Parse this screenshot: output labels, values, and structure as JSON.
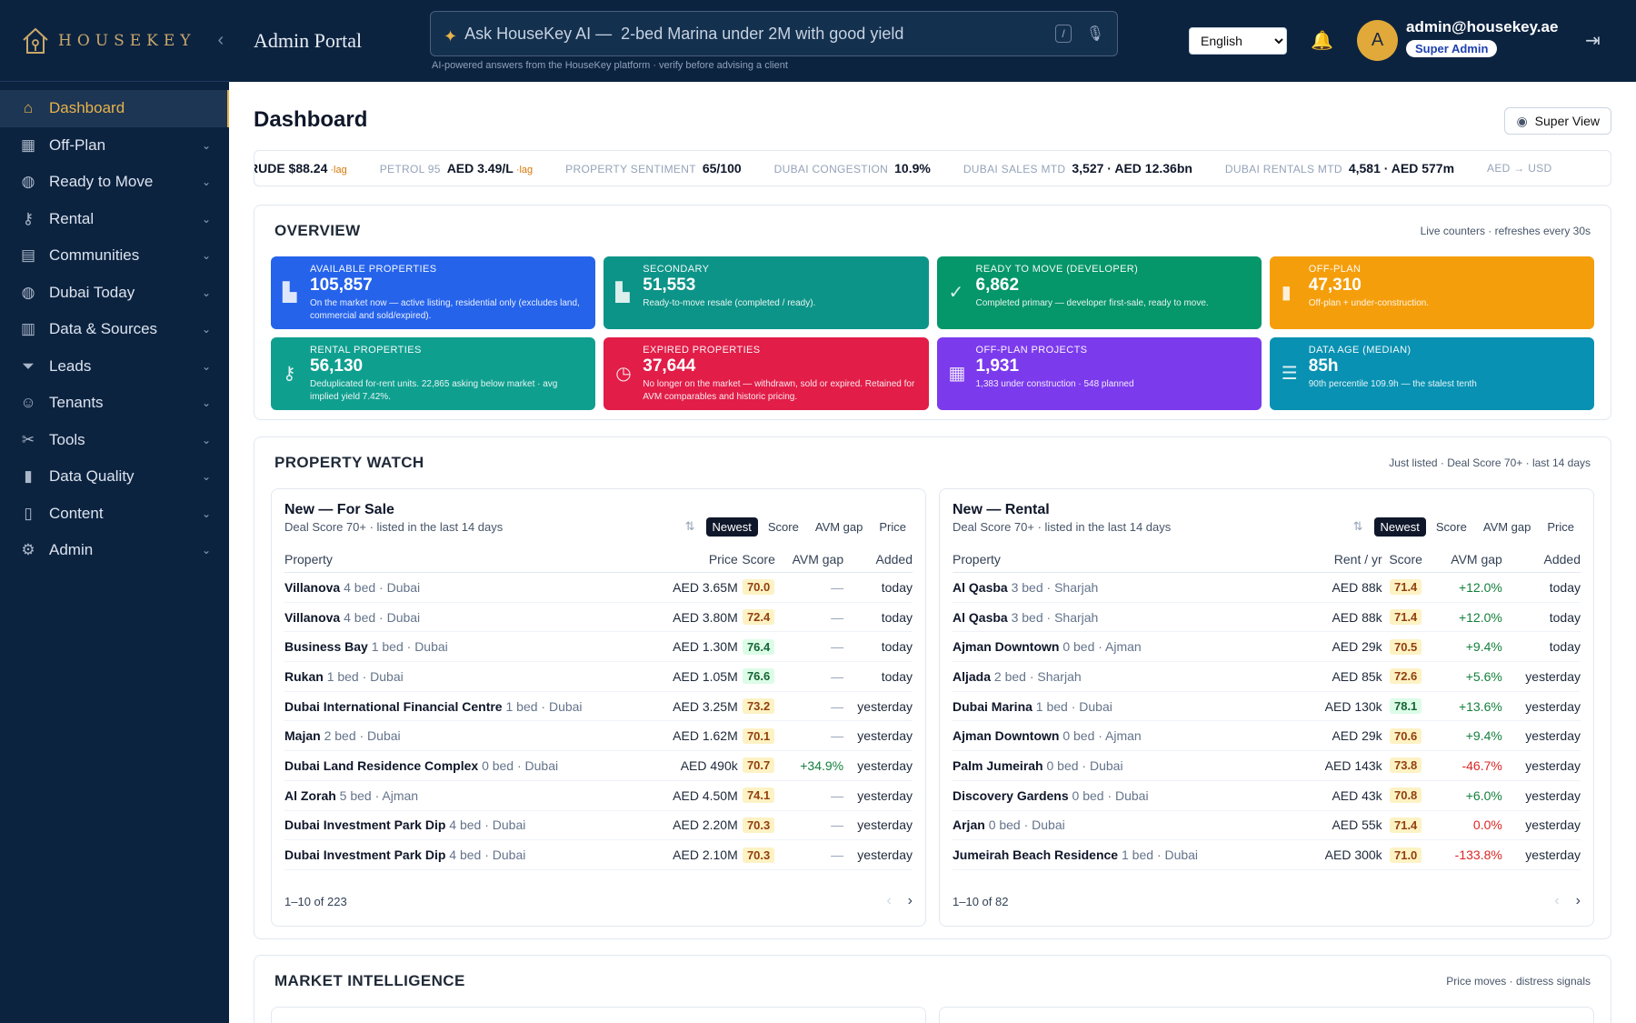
{
  "brand": {
    "name": "HOUSEKEY",
    "portal": "Admin Portal"
  },
  "search": {
    "prefix": "Ask HouseKey AI —",
    "placeholder": "Ask HouseKey AI —  2-bed Marina under 2M with good yield",
    "shortcut": "/",
    "note": "AI-powered answers from the HouseKey platform · verify before advising a client"
  },
  "language": {
    "selected": "English"
  },
  "user": {
    "initial": "A",
    "email": "admin@housekey.ae",
    "role": "Super Admin"
  },
  "sidebar": {
    "items": [
      {
        "label": "Dashboard",
        "icon": "home-icon",
        "glyph": "⌂"
      },
      {
        "label": "Off-Plan",
        "icon": "building-icon",
        "glyph": "▦"
      },
      {
        "label": "Ready to Move",
        "icon": "globe-icon",
        "glyph": "◍"
      },
      {
        "label": "Rental",
        "icon": "key-icon",
        "glyph": "⚷"
      },
      {
        "label": "Communities",
        "icon": "map-icon",
        "glyph": "▤"
      },
      {
        "label": "Dubai Today",
        "icon": "globe-icon",
        "glyph": "◍"
      },
      {
        "label": "Data & Sources",
        "icon": "database-icon",
        "glyph": "▥"
      },
      {
        "label": "Leads",
        "icon": "funnel-icon",
        "glyph": "⏷"
      },
      {
        "label": "Tenants",
        "icon": "users-icon",
        "glyph": "☺"
      },
      {
        "label": "Tools",
        "icon": "tools-icon",
        "glyph": "✂"
      },
      {
        "label": "Data Quality",
        "icon": "bar-chart-icon",
        "glyph": "▮"
      },
      {
        "label": "Content",
        "icon": "document-icon",
        "glyph": "▯"
      },
      {
        "label": "Admin",
        "icon": "gear-icon",
        "glyph": "⚙"
      }
    ]
  },
  "page": {
    "title": "Dashboard",
    "super_view": "Super View"
  },
  "ticker": [
    {
      "k": "",
      "v": "RUDE $88.24",
      "lag": "·lag"
    },
    {
      "k": "PETROL 95",
      "v": "AED 3.49/L",
      "lag": "·lag"
    },
    {
      "k": "PROPERTY SENTIMENT",
      "v": "65/100",
      "lag": ""
    },
    {
      "k": "DUBAI CONGESTION",
      "v": "10.9%",
      "lag": ""
    },
    {
      "k": "DUBAI SALES MTD",
      "v": "3,527 · AED 12.36bn",
      "lag": ""
    },
    {
      "k": "DUBAI RENTALS MTD",
      "v": "4,581 · AED 577m",
      "lag": ""
    },
    {
      "k": "AED → USD",
      "v": "",
      "lag": ""
    }
  ],
  "overview": {
    "title": "OVERVIEW",
    "note": "Live counters · refreshes every 30s",
    "cards": [
      {
        "label": "AVAILABLE PROPERTIES",
        "value": "105,857",
        "desc": "On the market now — active listing, residential only (excludes land, commercial and sold/expired).",
        "color": "#2563eb",
        "glyph": "▙"
      },
      {
        "label": "SECONDARY",
        "value": "51,553",
        "desc": "Ready-to-move resale (completed / ready).",
        "color": "#0d9488",
        "glyph": "▙"
      },
      {
        "label": "READY TO MOVE (DEVELOPER)",
        "value": "6,862",
        "desc": "Completed primary — developer first-sale, ready to move.",
        "color": "#059669",
        "glyph": "✓"
      },
      {
        "label": "OFF-PLAN",
        "value": "47,310",
        "desc": "Off-plan + under-construction.",
        "color": "#f59e0b",
        "glyph": "▮"
      },
      {
        "label": "RENTAL PROPERTIES",
        "value": "56,130",
        "desc": "Deduplicated for-rent units. 22,865 asking below market · avg implied yield 7.42%.",
        "color": "#0f9f8f",
        "glyph": "⚷"
      },
      {
        "label": "EXPIRED PROPERTIES",
        "value": "37,644",
        "desc": "No longer on the market — withdrawn, sold or expired. Retained for AVM comparables and historic pricing.",
        "color": "#e11d48",
        "glyph": "◷"
      },
      {
        "label": "OFF-PLAN PROJECTS",
        "value": "1,931",
        "desc": "1,383 under construction · 548 planned",
        "color": "#7c3aed",
        "glyph": "▦"
      },
      {
        "label": "DATA AGE (MEDIAN)",
        "value": "85h",
        "desc": "90th percentile 109.9h — the stalest tenth",
        "color": "#0891b2",
        "glyph": "☰"
      }
    ]
  },
  "property_watch": {
    "title": "PROPERTY WATCH",
    "note": "Just listed · Deal Score 70+ · last 14 days",
    "sale": {
      "title": "New — For Sale",
      "subtitle": "Deal Score 70+ · listed in the last 14 days",
      "sorts": [
        "Newest",
        "Score",
        "AVM gap",
        "Price"
      ],
      "columns": [
        "Property",
        "Price",
        "Score",
        "AVM gap",
        "Added"
      ],
      "rows": [
        {
          "name": "Villanova",
          "meta": "4 bed · Dubai",
          "price": "AED 3.65M",
          "score": "70.0",
          "gap": "—",
          "added": "today"
        },
        {
          "name": "Villanova",
          "meta": "4 bed · Dubai",
          "price": "AED 3.80M",
          "score": "72.4",
          "gap": "—",
          "added": "today"
        },
        {
          "name": "Business Bay",
          "meta": "1 bed · Dubai",
          "price": "AED 1.30M",
          "score": "76.4",
          "gap": "—",
          "added": "today"
        },
        {
          "name": "Rukan",
          "meta": "1 bed · Dubai",
          "price": "AED 1.05M",
          "score": "76.6",
          "gap": "—",
          "added": "today"
        },
        {
          "name": "Dubai International Financial Centre",
          "meta": "1 bed · Dubai",
          "price": "AED 3.25M",
          "score": "73.2",
          "gap": "—",
          "added": "yesterday"
        },
        {
          "name": "Majan",
          "meta": "2 bed · Dubai",
          "price": "AED 1.62M",
          "score": "70.1",
          "gap": "—",
          "added": "yesterday"
        },
        {
          "name": "Dubai Land Residence Complex",
          "meta": "0 bed · Dubai",
          "price": "AED 490k",
          "score": "70.7",
          "gap": "+34.9%",
          "added": "yesterday"
        },
        {
          "name": "Al Zorah",
          "meta": "5 bed · Ajman",
          "price": "AED 4.50M",
          "score": "74.1",
          "gap": "—",
          "added": "yesterday"
        },
        {
          "name": "Dubai Investment Park Dip",
          "meta": "4 bed · Dubai",
          "price": "AED 2.20M",
          "score": "70.3",
          "gap": "—",
          "added": "yesterday"
        },
        {
          "name": "Dubai Investment Park Dip",
          "meta": "4 bed · Dubai",
          "price": "AED 2.10M",
          "score": "70.3",
          "gap": "—",
          "added": "yesterday"
        }
      ],
      "range": "1–10 of 223"
    },
    "rental": {
      "title": "New — Rental",
      "subtitle": "Deal Score 70+ · listed in the last 14 days",
      "sorts": [
        "Newest",
        "Score",
        "AVM gap",
        "Price"
      ],
      "columns": [
        "Property",
        "Rent / yr",
        "Score",
        "AVM gap",
        "Added"
      ],
      "rows": [
        {
          "name": "Al Qasba",
          "meta": "3 bed · Sharjah",
          "price": "AED 88k",
          "score": "71.4",
          "gap": "+12.0%",
          "added": "today"
        },
        {
          "name": "Al Qasba",
          "meta": "3 bed · Sharjah",
          "price": "AED 88k",
          "score": "71.4",
          "gap": "+12.0%",
          "added": "today"
        },
        {
          "name": "Ajman Downtown",
          "meta": "0 bed · Ajman",
          "price": "AED 29k",
          "score": "70.5",
          "gap": "+9.4%",
          "added": "today"
        },
        {
          "name": "Aljada",
          "meta": "2 bed · Sharjah",
          "price": "AED 85k",
          "score": "72.6",
          "gap": "+5.6%",
          "added": "yesterday"
        },
        {
          "name": "Dubai Marina",
          "meta": "1 bed · Dubai",
          "price": "AED 130k",
          "score": "78.1",
          "gap": "+13.6%",
          "added": "yesterday"
        },
        {
          "name": "Ajman Downtown",
          "meta": "0 bed · Ajman",
          "price": "AED 29k",
          "score": "70.6",
          "gap": "+9.4%",
          "added": "yesterday"
        },
        {
          "name": "Palm Jumeirah",
          "meta": "0 bed · Dubai",
          "price": "AED 143k",
          "score": "73.8",
          "gap": "-46.7%",
          "added": "yesterday"
        },
        {
          "name": "Discovery Gardens",
          "meta": "0 bed · Dubai",
          "price": "AED 43k",
          "score": "70.8",
          "gap": "+6.0%",
          "added": "yesterday"
        },
        {
          "name": "Arjan",
          "meta": "0 bed · Dubai",
          "price": "AED 55k",
          "score": "71.4",
          "gap": "0.0%",
          "added": "yesterday"
        },
        {
          "name": "Jumeirah Beach Residence",
          "meta": "1 bed · Dubai",
          "price": "AED 300k",
          "score": "71.0",
          "gap": "-133.8%",
          "added": "yesterday"
        }
      ],
      "range": "1–10 of 82"
    }
  },
  "market": {
    "title": "MARKET INTELLIGENCE",
    "note": "Price moves · distress signals"
  }
}
